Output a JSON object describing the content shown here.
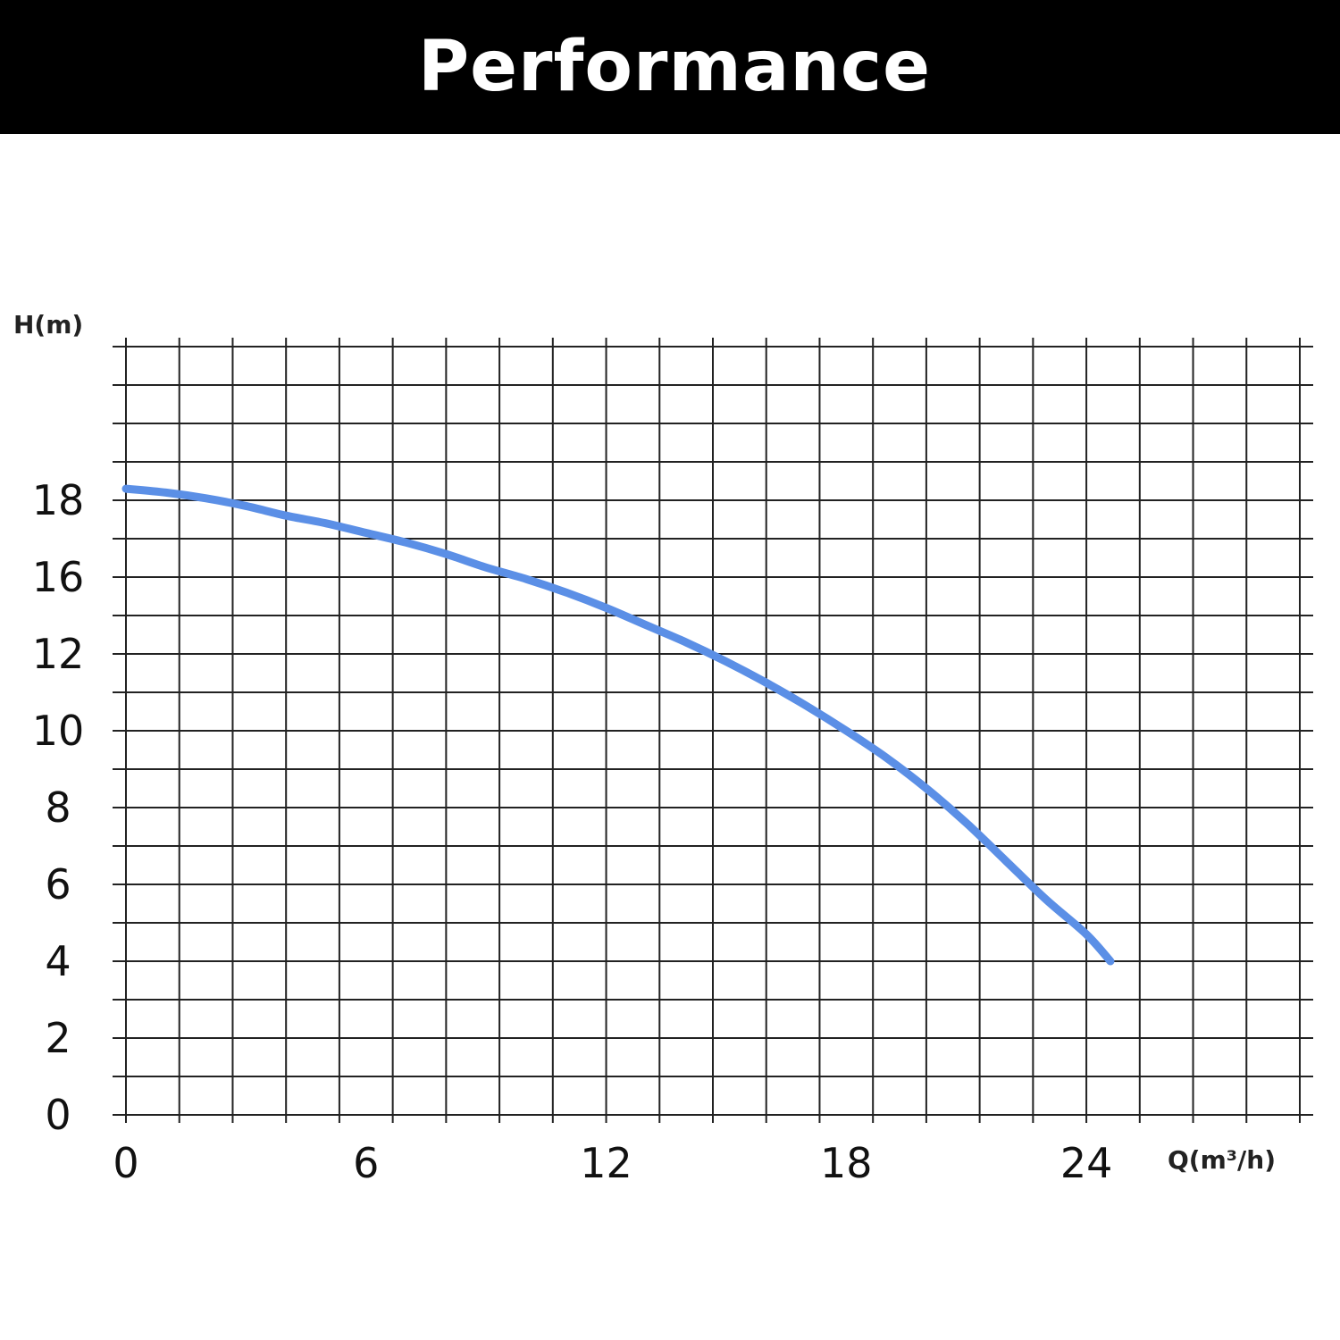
{
  "banner": {
    "title": "Performance"
  },
  "chart_data": {
    "type": "line",
    "title": "",
    "xlabel": "Q(m³/h)",
    "ylabel": "H(m)",
    "xlim": [
      0,
      30
    ],
    "ylim": [
      0,
      20
    ],
    "x_ticks": [
      0,
      6,
      12,
      18,
      24
    ],
    "x_tick_labels": [
      "0",
      "6",
      "12",
      "18",
      "24"
    ],
    "y_tick_labels": [
      "0",
      "2",
      "4",
      "6",
      "8",
      "10",
      "12",
      "16",
      "18"
    ],
    "grid": true,
    "colors": {
      "curve": "#5b8fe6",
      "grid": "#222222",
      "banner": "#000000"
    },
    "series": [
      {
        "x": [
          0,
          1,
          2,
          3,
          4,
          5,
          6,
          7,
          8,
          9,
          10,
          11,
          12,
          13,
          14,
          15,
          16,
          17,
          18,
          19,
          20,
          21,
          22,
          23,
          24,
          24.6
        ],
        "y": [
          16.3,
          16.2,
          16.05,
          15.85,
          15.6,
          15.4,
          15.15,
          14.9,
          14.6,
          14.25,
          13.95,
          13.6,
          13.2,
          12.75,
          12.3,
          11.8,
          11.25,
          10.65,
          10.0,
          9.3,
          8.5,
          7.6,
          6.6,
          5.6,
          4.7,
          4.0
        ]
      }
    ]
  }
}
